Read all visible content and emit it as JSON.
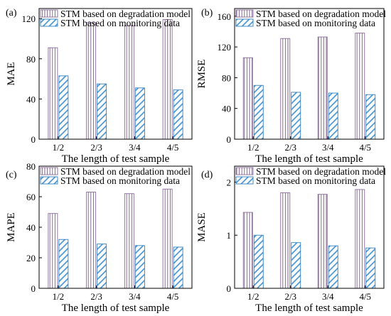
{
  "colors": {
    "degradation_stroke": "#8a6a9a",
    "degradation_stripe": "#7a5a8c",
    "monitoring_stroke": "#2f7fc0",
    "monitoring_stripe": "#3d8fd0",
    "axis": "#000000"
  },
  "chart_data": [
    {
      "type": "bar",
      "panel_label": "(a)",
      "ylabel": "MAE",
      "xlabel": "The length of test sample",
      "categories": [
        "1/2",
        "2/3",
        "3/4",
        "4/5"
      ],
      "ylim": [
        0,
        130
      ],
      "yticks": [
        0,
        40,
        80,
        120
      ],
      "legend_position": "top",
      "series": [
        {
          "name": "STM based on degradation model",
          "values": [
            91,
            116,
            113,
            119
          ]
        },
        {
          "name": "STM based on monitoring data",
          "values": [
            63,
            55,
            51,
            49
          ]
        }
      ]
    },
    {
      "type": "bar",
      "panel_label": "(b)",
      "ylabel": "RMSE",
      "xlabel": "The length of test sample",
      "categories": [
        "1/2",
        "2/3",
        "3/4",
        "4/5"
      ],
      "ylim": [
        0,
        170
      ],
      "yticks": [
        0,
        40,
        80,
        120,
        160
      ],
      "legend_position": "top",
      "series": [
        {
          "name": "STM based on degradation model",
          "values": [
            106,
            131,
            133,
            138
          ]
        },
        {
          "name": "STM based on monitoring data",
          "values": [
            70,
            61,
            60,
            58
          ]
        }
      ]
    },
    {
      "type": "bar",
      "panel_label": "(c)",
      "ylabel": "MAPE",
      "xlabel": "The length of test sample",
      "categories": [
        "1/2",
        "2/3",
        "3/4",
        "4/5"
      ],
      "ylim": [
        0,
        80
      ],
      "yticks": [
        0,
        20,
        40,
        60,
        80
      ],
      "legend_position": "top",
      "series": [
        {
          "name": "STM based on degradation model",
          "values": [
            49,
            63,
            62,
            65
          ]
        },
        {
          "name": "STM based on monitoring data",
          "values": [
            32,
            29,
            28,
            27
          ]
        }
      ]
    },
    {
      "type": "bar",
      "panel_label": "(d)",
      "ylabel": "MASE",
      "xlabel": "The length of test sample",
      "categories": [
        "1/2",
        "2/3",
        "3/4",
        "4/5"
      ],
      "ylim": [
        0,
        2.3
      ],
      "yticks": [
        0,
        1,
        2
      ],
      "legend_position": "top",
      "series": [
        {
          "name": "STM based on degradation model",
          "values": [
            1.43,
            1.8,
            1.77,
            1.86
          ]
        },
        {
          "name": "STM based on monitoring data",
          "values": [
            1.0,
            0.86,
            0.8,
            0.76
          ]
        }
      ]
    }
  ]
}
